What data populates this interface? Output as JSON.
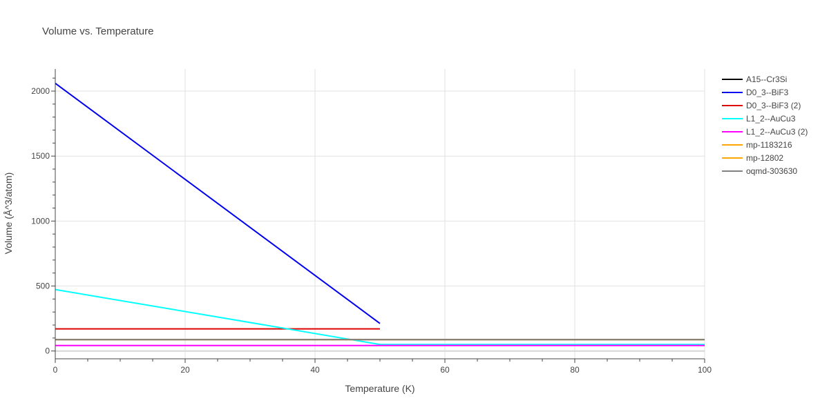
{
  "chart_data": {
    "type": "line",
    "title": "Volume vs. Temperature",
    "xlabel": "Temperature (K)",
    "ylabel": "Volume (Å^3/atom)",
    "xlim": [
      0,
      100
    ],
    "ylim": [
      -60,
      2170
    ],
    "x_ticks": [
      0,
      20,
      40,
      60,
      80,
      100
    ],
    "y_ticks": [
      0,
      500,
      1000,
      1500,
      2000
    ],
    "grid": true,
    "legend_position": "right",
    "series": [
      {
        "name": "A15--Cr3Si",
        "color": "#000000",
        "x": [
          0,
          100
        ],
        "y": [
          88,
          88
        ]
      },
      {
        "name": "D0_3--BiF3",
        "color": "#0000ee",
        "x": [
          0,
          50
        ],
        "y": [
          2060,
          212
        ]
      },
      {
        "name": "D0_3--BiF3 (2)",
        "color": "#dd0000",
        "x": [
          0,
          50
        ],
        "y": [
          170,
          170
        ]
      },
      {
        "name": "L1_2--AuCu3",
        "color": "#00ffff",
        "x": [
          0,
          50,
          100
        ],
        "y": [
          473,
          50,
          50
        ]
      },
      {
        "name": "L1_2--AuCu3 (2)",
        "color": "#ff00ff",
        "x": [
          0,
          100
        ],
        "y": [
          42,
          42
        ]
      },
      {
        "name": "mp-1183216",
        "color": "#ffa500",
        "x": [
          0,
          100
        ],
        "y": [
          88,
          88
        ]
      },
      {
        "name": "mp-12802",
        "color": "#ffa500",
        "x": [
          0,
          100
        ],
        "y": [
          88,
          88
        ]
      },
      {
        "name": "oqmd-303630",
        "color": "#808080",
        "x": [
          0,
          100
        ],
        "y": [
          88,
          88
        ]
      }
    ]
  }
}
